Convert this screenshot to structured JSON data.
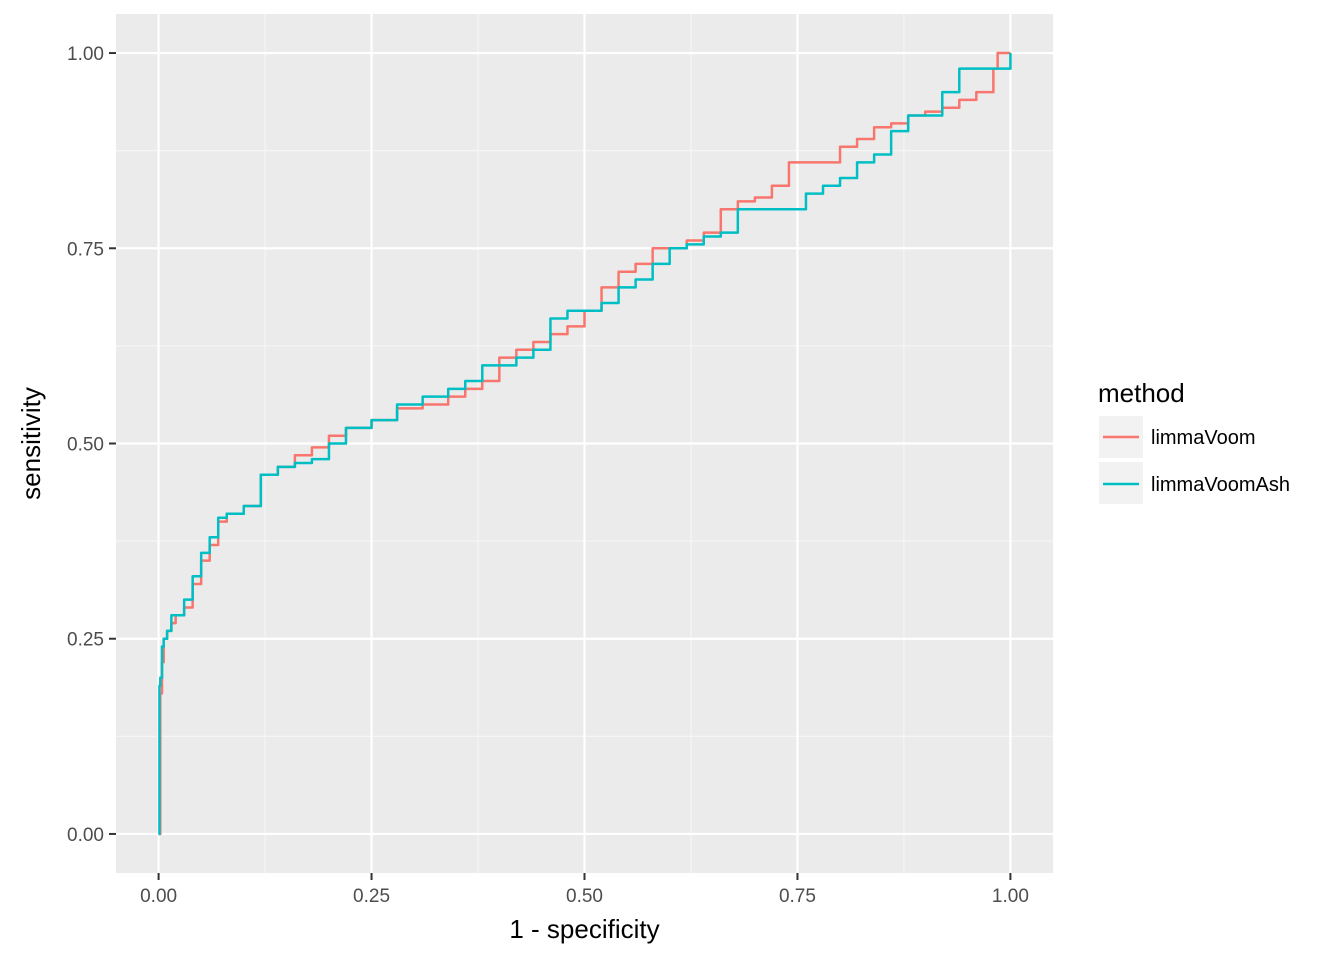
{
  "chart_data": {
    "type": "line",
    "xlabel": "1 - specificity",
    "ylabel": "sensitivity",
    "xlim": [
      -0.05,
      1.05
    ],
    "ylim": [
      -0.05,
      1.05
    ],
    "x_ticks": [
      0,
      0.25,
      0.5,
      0.75,
      1
    ],
    "x_tick_labels": [
      "0.00",
      "0.25",
      "0.50",
      "0.75",
      "1.00"
    ],
    "y_ticks": [
      0,
      0.25,
      0.5,
      0.75,
      1
    ],
    "y_tick_labels": [
      "0.00",
      "0.25",
      "0.50",
      "0.75",
      "1.00"
    ],
    "grid": true,
    "legend": {
      "title": "method",
      "position": "right"
    },
    "series": [
      {
        "name": "limmaVoom",
        "color": "#F8766D",
        "x": [
          0,
          0.002,
          0.004,
          0.006,
          0.01,
          0.015,
          0.02,
          0.03,
          0.04,
          0.05,
          0.06,
          0.07,
          0.08,
          0.1,
          0.12,
          0.14,
          0.16,
          0.18,
          0.2,
          0.22,
          0.25,
          0.28,
          0.31,
          0.34,
          0.36,
          0.38,
          0.4,
          0.42,
          0.44,
          0.46,
          0.48,
          0.5,
          0.52,
          0.54,
          0.56,
          0.58,
          0.6,
          0.62,
          0.64,
          0.66,
          0.68,
          0.7,
          0.72,
          0.74,
          0.76,
          0.78,
          0.8,
          0.82,
          0.84,
          0.86,
          0.88,
          0.9,
          0.92,
          0.94,
          0.96,
          0.98,
          0.985,
          1.0
        ],
        "y": [
          0,
          0.18,
          0.22,
          0.25,
          0.26,
          0.27,
          0.28,
          0.29,
          0.32,
          0.35,
          0.37,
          0.4,
          0.41,
          0.42,
          0.46,
          0.47,
          0.485,
          0.495,
          0.51,
          0.52,
          0.53,
          0.545,
          0.55,
          0.56,
          0.57,
          0.58,
          0.61,
          0.62,
          0.63,
          0.64,
          0.65,
          0.67,
          0.7,
          0.72,
          0.73,
          0.75,
          0.75,
          0.76,
          0.77,
          0.8,
          0.81,
          0.815,
          0.83,
          0.86,
          0.86,
          0.86,
          0.88,
          0.89,
          0.905,
          0.91,
          0.92,
          0.925,
          0.93,
          0.94,
          0.95,
          0.98,
          1.0,
          1.0
        ]
      },
      {
        "name": "limmaVoomAsh",
        "color": "#00BFC4",
        "x": [
          0,
          0.001,
          0.002,
          0.004,
          0.006,
          0.01,
          0.015,
          0.02,
          0.03,
          0.04,
          0.05,
          0.06,
          0.07,
          0.08,
          0.1,
          0.12,
          0.14,
          0.16,
          0.18,
          0.2,
          0.22,
          0.25,
          0.28,
          0.31,
          0.34,
          0.36,
          0.38,
          0.4,
          0.42,
          0.44,
          0.46,
          0.48,
          0.5,
          0.52,
          0.54,
          0.56,
          0.58,
          0.6,
          0.62,
          0.64,
          0.66,
          0.68,
          0.7,
          0.72,
          0.74,
          0.76,
          0.78,
          0.8,
          0.82,
          0.84,
          0.86,
          0.88,
          0.9,
          0.92,
          0.94,
          0.96,
          0.98,
          1.0
        ],
        "y": [
          0,
          0.19,
          0.2,
          0.24,
          0.25,
          0.26,
          0.28,
          0.28,
          0.3,
          0.33,
          0.36,
          0.38,
          0.405,
          0.41,
          0.42,
          0.46,
          0.47,
          0.475,
          0.48,
          0.5,
          0.52,
          0.53,
          0.55,
          0.56,
          0.57,
          0.58,
          0.6,
          0.6,
          0.61,
          0.62,
          0.66,
          0.67,
          0.67,
          0.68,
          0.7,
          0.71,
          0.73,
          0.75,
          0.755,
          0.765,
          0.77,
          0.8,
          0.8,
          0.8,
          0.8,
          0.82,
          0.83,
          0.84,
          0.86,
          0.87,
          0.9,
          0.92,
          0.92,
          0.95,
          0.98,
          0.98,
          0.98,
          1.0
        ]
      }
    ]
  }
}
